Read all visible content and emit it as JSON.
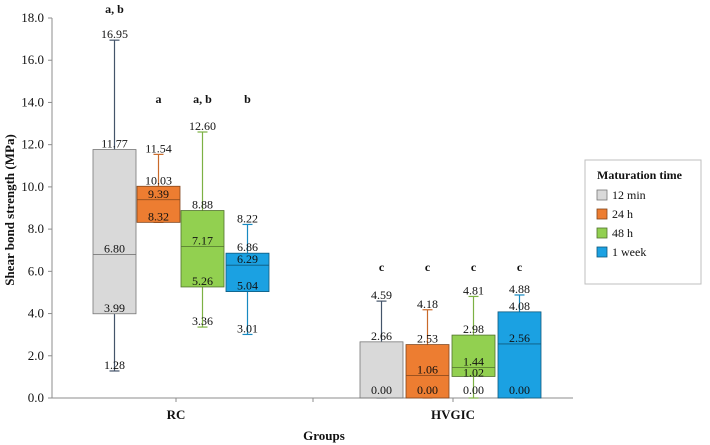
{
  "chart_data": {
    "type": "box",
    "xlabel": "Groups",
    "ylabel": "Shear bond strength (MPa)",
    "ylim": [
      0,
      18
    ],
    "yticks": [
      "0.0",
      "2.0",
      "4.0",
      "6.0",
      "8.0",
      "10.0",
      "12.0",
      "14.0",
      "16.0",
      "18.0"
    ],
    "grid": false,
    "legend": {
      "title": "Maturation time",
      "position": "right"
    },
    "categories": [
      "RC",
      "HVGIC"
    ],
    "series": [
      {
        "name": "12 min",
        "color": "#d9d9d9",
        "boxes": [
          {
            "category": "RC",
            "min": 1.28,
            "q1": 3.99,
            "median": 6.8,
            "q3": 11.77,
            "max": 16.95,
            "labels": [
              "16.95",
              "11.77",
              "6.80",
              "3.99",
              "1.28"
            ],
            "group": "a, b"
          },
          {
            "category": "HVGIC",
            "min": 0.0,
            "q1": 0.0,
            "median": 0.0,
            "q3": 2.66,
            "max": 4.59,
            "labels": [
              "4.59",
              "2.66",
              "0.00"
            ],
            "group": "c"
          }
        ]
      },
      {
        "name": "24 h",
        "color": "#ed7d31",
        "boxes": [
          {
            "category": "RC",
            "min": 8.32,
            "q1": 8.32,
            "median": 9.39,
            "q3": 10.03,
            "max": 11.54,
            "labels": [
              "11.54",
              "10.03",
              "9.39",
              "8.32"
            ],
            "group": "a"
          },
          {
            "category": "HVGIC",
            "min": 0.0,
            "q1": 0.0,
            "median": 1.06,
            "q3": 2.53,
            "max": 4.18,
            "labels": [
              "4.18",
              "2.53",
              "1.06",
              "0.00"
            ],
            "group": "c"
          }
        ]
      },
      {
        "name": "48 h",
        "color": "#92d050",
        "boxes": [
          {
            "category": "RC",
            "min": 3.36,
            "q1": 5.26,
            "median": 7.17,
            "q3": 8.88,
            "max": 12.6,
            "labels": [
              "12.60",
              "8.88",
              "7.17",
              "5.26",
              "3.36"
            ],
            "group": "a, b"
          },
          {
            "category": "HVGIC",
            "min": 0.0,
            "q1": 1.02,
            "median": 1.44,
            "q3": 2.98,
            "max": 4.81,
            "labels": [
              "4.81",
              "2.98",
              "1.44",
              "1.02",
              "0.00"
            ],
            "group": "c"
          }
        ]
      },
      {
        "name": "1 week",
        "color": "#1ba1e2",
        "boxes": [
          {
            "category": "RC",
            "min": 3.01,
            "q1": 5.04,
            "median": 6.29,
            "q3": 6.86,
            "max": 8.22,
            "labels": [
              "8.22",
              "6.86",
              "6.29",
              "5.04",
              "3.01"
            ],
            "group": "b"
          },
          {
            "category": "HVGIC",
            "min": 0.0,
            "q1": 0.0,
            "median": 2.56,
            "q3": 4.08,
            "max": 4.88,
            "labels": [
              "4.88",
              "4.08",
              "2.56",
              "0.00"
            ],
            "group": "c"
          }
        ]
      }
    ]
  }
}
